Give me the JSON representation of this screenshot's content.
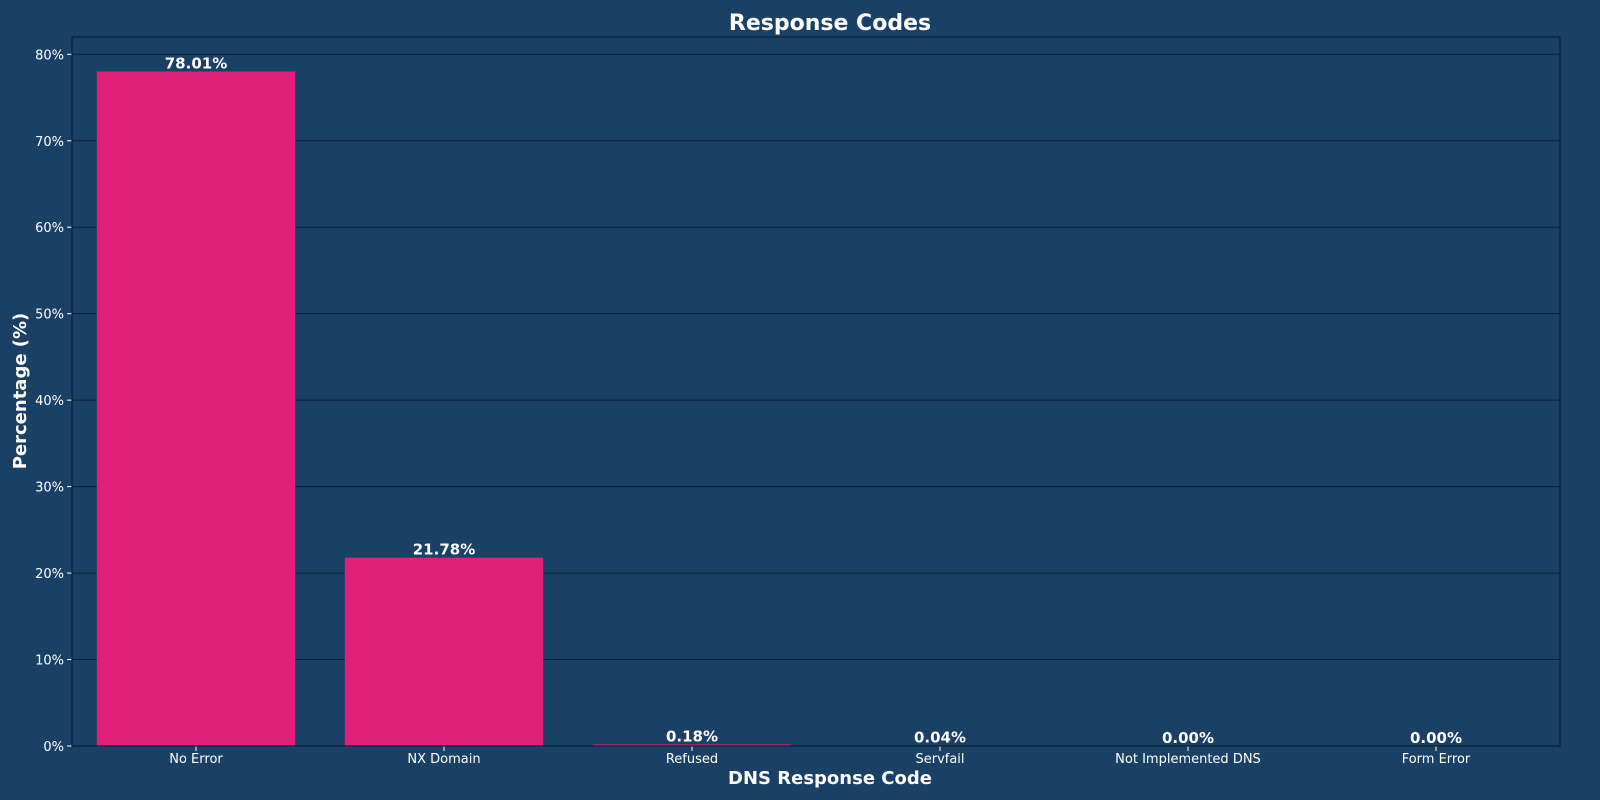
{
  "chart_data": {
    "type": "bar",
    "title": "Response Codes",
    "xlabel": "DNS Response Code",
    "ylabel": "Percentage (%)",
    "categories": [
      "No Error",
      "NX Domain",
      "Refused",
      "Servfail",
      "Not Implemented DNS",
      "Form Error"
    ],
    "values": [
      78.01,
      21.78,
      0.18,
      0.04,
      0.0,
      0.0
    ],
    "data_labels": [
      "78.01%",
      "21.78%",
      "0.18%",
      "0.04%",
      "0.00%",
      "0.00%"
    ],
    "yticks": [
      0,
      10,
      20,
      30,
      40,
      50,
      60,
      70,
      80
    ],
    "ytick_labels": [
      "0%",
      "10%",
      "20%",
      "30%",
      "40%",
      "50%",
      "60%",
      "70%",
      "80%"
    ],
    "ylim": [
      0,
      82
    ],
    "grid": true,
    "legend": "none",
    "colors": {
      "background": "#1b4066",
      "bar": "#e0207a",
      "text": "#ffffff",
      "grid": "#0b1f33",
      "axis": "#0b1f33"
    }
  }
}
